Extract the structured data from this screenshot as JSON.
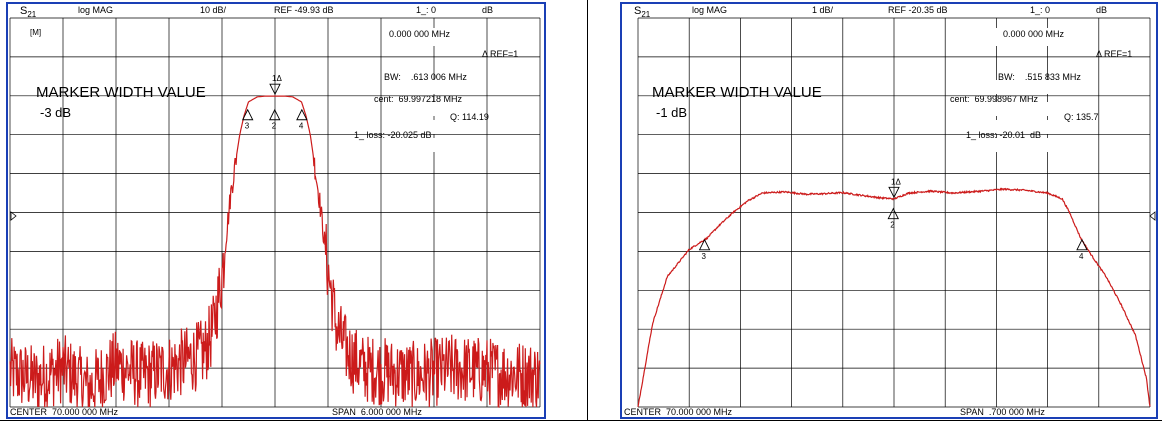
{
  "chart_data": [
    {
      "type": "line",
      "parameter_main": "S",
      "parameter_sub": "21",
      "format": "log MAG",
      "scale": "10 dB/",
      "reference": "REF -49.93 dB",
      "marker_readout": "1_: 0",
      "marker_unit": "dB",
      "scale_per_div_db": 10,
      "reference_db": -49.93,
      "reference_division": 5,
      "divisions": {
        "x": 10,
        "y": 10
      },
      "center_label": "CENTER  70.000 000 MHz",
      "span_label": "SPAN  6.000 000 MHz",
      "center_mhz": 70.0,
      "span_mhz": 6.0,
      "ylim": [
        -99.93,
        0.07
      ],
      "corner_label": "[M]",
      "annotations": {
        "title": "MARKER WIDTH VALUE",
        "level": "-3 dB",
        "delta_freq": "0.000 000 MHz",
        "ref_mode": "Δ REF=1",
        "bw": "BW:    .613 006 MHz",
        "cent": "cent:  69.997218 MHz",
        "q": "Q: 114.19",
        "loss": "1_ loss: -20.025 dB"
      },
      "markers": [
        {
          "label": "1Δ",
          "x_mhz": 70.0,
          "y_db": -20.025,
          "dir": "down"
        },
        {
          "label": "2",
          "x_mhz": 69.997,
          "y_db": -23.0,
          "dir": "up"
        },
        {
          "label": "3",
          "x_mhz": 69.691,
          "y_db": -23.0,
          "dir": "up"
        },
        {
          "label": "4",
          "x_mhz": 70.304,
          "y_db": -23.0,
          "dir": "up"
        }
      ],
      "series": [
        {
          "values": [
            [
              67.0,
              -91
            ],
            [
              67.3,
              -93
            ],
            [
              67.6,
              -90
            ],
            [
              67.9,
              -95
            ],
            [
              68.2,
              -89
            ],
            [
              68.5,
              -92
            ],
            [
              68.8,
              -90
            ],
            [
              69.0,
              -88
            ],
            [
              69.2,
              -86
            ],
            [
              69.3,
              -80
            ],
            [
              69.4,
              -66
            ],
            [
              69.5,
              -45
            ],
            [
              69.6,
              -30
            ],
            [
              69.65,
              -25
            ],
            [
              69.7,
              -21.5
            ],
            [
              69.8,
              -20.2
            ],
            [
              69.9,
              -20.0
            ],
            [
              70.0,
              -20.0
            ],
            [
              70.1,
              -20.0
            ],
            [
              70.2,
              -20.2
            ],
            [
              70.3,
              -21.5
            ],
            [
              70.35,
              -25
            ],
            [
              70.4,
              -30
            ],
            [
              70.5,
              -46
            ],
            [
              70.6,
              -65
            ],
            [
              70.7,
              -80
            ],
            [
              70.8,
              -85
            ],
            [
              70.9,
              -88
            ],
            [
              71.0,
              -90
            ],
            [
              71.3,
              -91
            ],
            [
              71.6,
              -92
            ],
            [
              72.0,
              -90
            ],
            [
              72.5,
              -91
            ],
            [
              73.0,
              -92
            ]
          ]
        }
      ]
    },
    {
      "type": "line",
      "parameter_main": "S",
      "parameter_sub": "21",
      "format": "log MAG",
      "scale": "1 dB/",
      "reference": "REF -20.35 dB",
      "marker_readout": "1_: 0",
      "marker_unit": "dB",
      "scale_per_div_db": 1,
      "reference_db": -20.35,
      "reference_division": 5,
      "divisions": {
        "x": 10,
        "y": 10
      },
      "center_label": "CENTER  70.000 000 MHz",
      "span_label": "SPAN  .700 000 MHz",
      "center_mhz": 70.0,
      "span_mhz": 0.7,
      "ylim": [
        -25.35,
        -15.35
      ],
      "corner_label": "",
      "annotations": {
        "title": "MARKER WIDTH VALUE",
        "level": "-1 dB",
        "delta_freq": "0.000 000 MHz",
        "ref_mode": "Δ REF=1",
        "bw": "BW:    .515 833 MHz",
        "cent": "cent:  69.998967 MHz",
        "q": "Q: 135.7",
        "loss": "1_ loss: -20.01  dB"
      },
      "markers": [
        {
          "label": "1Δ",
          "x_mhz": 70.0,
          "y_db": -20.01,
          "dir": "down"
        },
        {
          "label": "2",
          "x_mhz": 69.999,
          "y_db": -20.2,
          "dir": "up"
        },
        {
          "label": "3",
          "x_mhz": 69.741,
          "y_db": -21.0,
          "dir": "up"
        },
        {
          "label": "4",
          "x_mhz": 70.257,
          "y_db": -21.0,
          "dir": "up"
        }
      ],
      "series": [
        {
          "values": [
            [
              69.65,
              -25.35
            ],
            [
              69.67,
              -23.2
            ],
            [
              69.69,
              -22.0
            ],
            [
              69.72,
              -21.3
            ],
            [
              69.745,
              -21.0
            ],
            [
              69.76,
              -20.7
            ],
            [
              69.78,
              -20.35
            ],
            [
              69.8,
              -20.05
            ],
            [
              69.82,
              -19.85
            ],
            [
              69.85,
              -19.82
            ],
            [
              69.88,
              -19.88
            ],
            [
              69.9,
              -19.87
            ],
            [
              69.93,
              -19.84
            ],
            [
              69.96,
              -19.92
            ],
            [
              69.98,
              -19.97
            ],
            [
              70.0,
              -20.0
            ],
            [
              70.02,
              -19.85
            ],
            [
              70.05,
              -19.8
            ],
            [
              70.08,
              -19.85
            ],
            [
              70.12,
              -19.8
            ],
            [
              70.15,
              -19.75
            ],
            [
              70.18,
              -19.78
            ],
            [
              70.21,
              -19.85
            ],
            [
              70.23,
              -20.0
            ],
            [
              70.24,
              -20.35
            ],
            [
              70.255,
              -21.0
            ],
            [
              70.27,
              -21.45
            ],
            [
              70.29,
              -22.0
            ],
            [
              70.31,
              -22.7
            ],
            [
              70.33,
              -23.5
            ],
            [
              70.345,
              -24.6
            ],
            [
              70.35,
              -25.35
            ]
          ]
        }
      ]
    }
  ]
}
